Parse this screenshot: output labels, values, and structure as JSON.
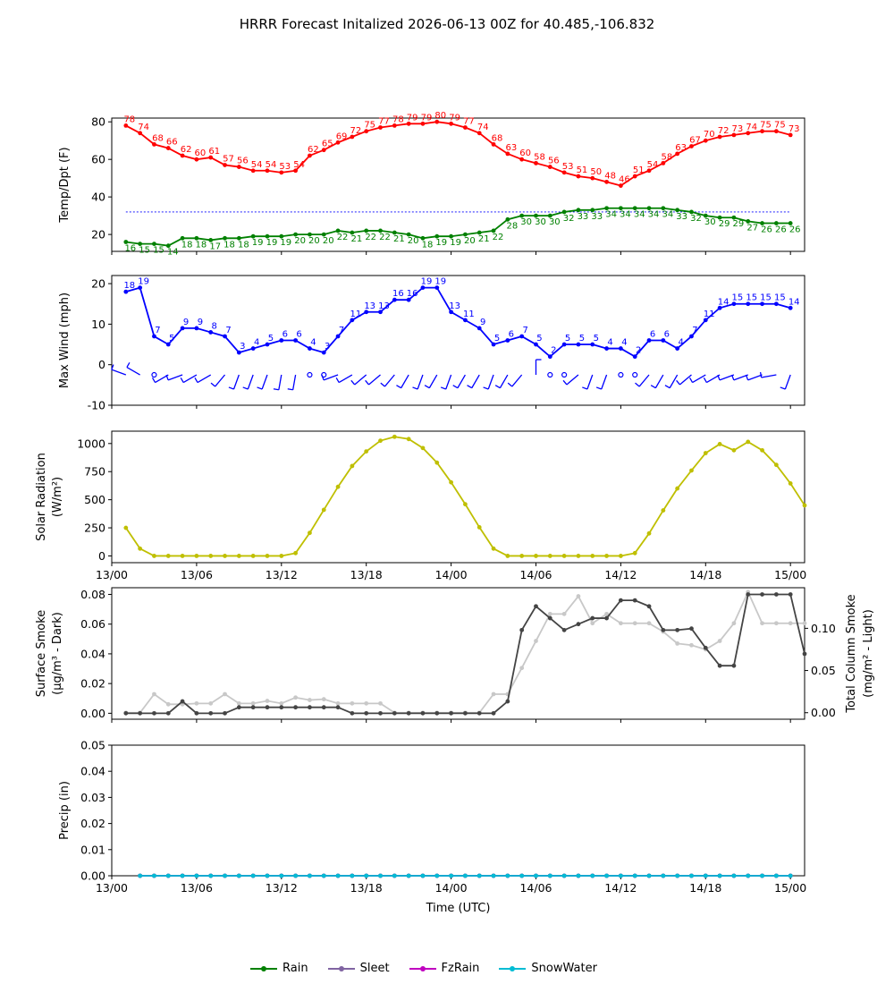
{
  "title": "HRRR Forecast Initalized 2026-06-13 00Z for 40.485,-106.832",
  "chart_data": [
    {
      "type": "line",
      "ylabel": "Temp/Dpt (F)",
      "ylim": [
        11,
        82
      ],
      "yticks": [
        20,
        40,
        60,
        80
      ],
      "xlim": [
        0,
        49
      ],
      "reference_line": {
        "value": 32,
        "color": "#0000ff",
        "style": "dotted"
      },
      "series": [
        {
          "name": "",
          "color": "#ff0000",
          "values": [
            78,
            74,
            68,
            66,
            62,
            60,
            61,
            57,
            56,
            54,
            54,
            53,
            54,
            62,
            65,
            69,
            72,
            75,
            77,
            78,
            79,
            79,
            80,
            79,
            77,
            74,
            68,
            63,
            60,
            58,
            56,
            53,
            51,
            50,
            48,
            46,
            51,
            54,
            58,
            63,
            67,
            70,
            72,
            73,
            74,
            75,
            75,
            73
          ]
        },
        {
          "name": "",
          "color": "#008000",
          "values": [
            16,
            15,
            15,
            14,
            18,
            18,
            17,
            18,
            18,
            19,
            19,
            19,
            20,
            20,
            20,
            22,
            21,
            22,
            22,
            21,
            20,
            18,
            19,
            19,
            20,
            21,
            22,
            28,
            30,
            30,
            30,
            32,
            33,
            33,
            34,
            34,
            34,
            34,
            34,
            33,
            32,
            30,
            29,
            29,
            27,
            26,
            26,
            26
          ]
        }
      ]
    },
    {
      "type": "line",
      "ylabel": "Max Wind (mph)",
      "ylim": [
        -10,
        22
      ],
      "yticks": [
        -10,
        0,
        10,
        20
      ],
      "xlim": [
        0,
        49
      ],
      "series": [
        {
          "name": "",
          "color": "#0000ff",
          "values": [
            18,
            19,
            7,
            5,
            9,
            9,
            8,
            7,
            3,
            4,
            5,
            6,
            6,
            4,
            3,
            7,
            11,
            13,
            13,
            16,
            16,
            19,
            19,
            13,
            11,
            9,
            5,
            6,
            7,
            5,
            2,
            5,
            5,
            5,
            4,
            4,
            2,
            6,
            6,
            4,
            7,
            11,
            14,
            15,
            15,
            15,
            15,
            14
          ]
        }
      ],
      "wind_barbs": {
        "y_level": -2.5,
        "calm_indices": [
          2,
          13,
          14,
          30,
          31,
          35,
          36
        ],
        "directions_deg": [
          290,
          300,
          0,
          240,
          250,
          240,
          240,
          220,
          200,
          200,
          200,
          190,
          190,
          0,
          0,
          250,
          240,
          230,
          230,
          220,
          210,
          200,
          210,
          200,
          210,
          210,
          200,
          210,
          220,
          0,
          0,
          220,
          230,
          200,
          200,
          0,
          0,
          220,
          210,
          210,
          230,
          240,
          240,
          250,
          250,
          250,
          260,
          200
        ]
      }
    },
    {
      "type": "line",
      "ylabel": "Solar Radiation",
      "ylabel2": "(W/m²)",
      "ylim": [
        -60,
        1110
      ],
      "yticks": [
        0,
        250,
        500,
        750,
        1000
      ],
      "xlim": [
        0,
        49
      ],
      "series": [
        {
          "name": "",
          "color": "#bfbf00",
          "values": [
            250,
            65,
            0,
            0,
            0,
            0,
            0,
            0,
            0,
            0,
            0,
            0,
            25,
            205,
            410,
            615,
            800,
            930,
            1025,
            1060,
            1040,
            960,
            830,
            655,
            460,
            255,
            65,
            0,
            0,
            0,
            0,
            0,
            0,
            0,
            0,
            0,
            25,
            200,
            405,
            600,
            760,
            915,
            995,
            940,
            1015,
            940,
            810,
            645,
            450
          ]
        }
      ]
    },
    {
      "type": "line",
      "ylabel": "Surface Smoke",
      "ylabel2": "(μg/m³ - Dark)",
      "ylabel_right": "Total Column Smoke",
      "ylabel_right2": "(mg/m² - Light)",
      "ylim": [
        -0.004,
        0.0845
      ],
      "yticks": [
        0.0,
        0.02,
        0.04,
        0.06,
        0.08
      ],
      "ylim_right": [
        -0.0077,
        0.1481
      ],
      "yticks_right": [
        0.0,
        0.05,
        0.1
      ],
      "xlim": [
        0,
        49
      ],
      "series": [
        {
          "name": "",
          "axis": "left",
          "color": "#444444",
          "values": [
            0,
            0,
            0,
            0,
            0.008,
            0,
            0,
            0,
            0.004,
            0.004,
            0.004,
            0.004,
            0.004,
            0.004,
            0.004,
            0.004,
            0,
            0,
            0,
            0,
            0,
            0,
            0,
            0,
            0,
            0,
            0,
            0.008,
            0.056,
            0.072,
            0.064,
            0.056,
            0.06,
            0.064,
            0.064,
            0.076,
            0.076,
            0.072,
            0.056,
            0.056,
            0.057,
            0.044,
            0.032,
            0.032,
            0.08,
            0.08,
            0.08,
            0.08,
            0.04
          ]
        },
        {
          "name": "",
          "axis": "right",
          "color": "#c8c8c8",
          "values": [
            0,
            0,
            0.022,
            0.01,
            0.01,
            0.011,
            0.011,
            0.022,
            0.011,
            0.011,
            0.014,
            0.011,
            0.018,
            0.015,
            0.016,
            0.011,
            0.011,
            0.011,
            0.011,
            0,
            0,
            0,
            0,
            0,
            0,
            0,
            0.022,
            0.022,
            0.053,
            0.085,
            0.117,
            0.117,
            0.138,
            0.106,
            0.117,
            0.106,
            0.106,
            0.106,
            0.096,
            0.082,
            0.08,
            0.075,
            0.085,
            0.106,
            0.143,
            0.106,
            0.106,
            0.106,
            0.106
          ]
        }
      ]
    },
    {
      "type": "line",
      "ylabel": "Precip (in)",
      "xlabel": "Time (UTC)",
      "ylim": [
        0,
        0.05
      ],
      "yticks": [
        0.0,
        0.01,
        0.02,
        0.03,
        0.04,
        0.05
      ],
      "xlim": [
        0,
        49
      ],
      "series": [
        {
          "name": "Rain",
          "color": "#008000",
          "values": [
            0,
            0,
            0,
            0,
            0,
            0,
            0,
            0,
            0,
            0,
            0,
            0,
            0,
            0,
            0,
            0,
            0,
            0,
            0,
            0,
            0,
            0,
            0,
            0,
            0,
            0,
            0,
            0,
            0,
            0,
            0,
            0,
            0,
            0,
            0,
            0,
            0,
            0,
            0,
            0,
            0,
            0,
            0,
            0,
            0,
            0,
            0
          ]
        },
        {
          "name": "Sleet",
          "color": "#8064a2",
          "values": [
            0,
            0,
            0,
            0,
            0,
            0,
            0,
            0,
            0,
            0,
            0,
            0,
            0,
            0,
            0,
            0,
            0,
            0,
            0,
            0,
            0,
            0,
            0,
            0,
            0,
            0,
            0,
            0,
            0,
            0,
            0,
            0,
            0,
            0,
            0,
            0,
            0,
            0,
            0,
            0,
            0,
            0,
            0,
            0,
            0,
            0,
            0
          ]
        },
        {
          "name": "FzRain",
          "color": "#c000c0",
          "values": [
            0,
            0,
            0,
            0,
            0,
            0,
            0,
            0,
            0,
            0,
            0,
            0,
            0,
            0,
            0,
            0,
            0,
            0,
            0,
            0,
            0,
            0,
            0,
            0,
            0,
            0,
            0,
            0,
            0,
            0,
            0,
            0,
            0,
            0,
            0,
            0,
            0,
            0,
            0,
            0,
            0,
            0,
            0,
            0,
            0,
            0,
            0
          ]
        },
        {
          "name": "SnowWater",
          "color": "#00bcd4",
          "values": [
            0,
            0,
            0,
            0,
            0,
            0,
            0,
            0,
            0,
            0,
            0,
            0,
            0,
            0,
            0,
            0,
            0,
            0,
            0,
            0,
            0,
            0,
            0,
            0,
            0,
            0,
            0,
            0,
            0,
            0,
            0,
            0,
            0,
            0,
            0,
            0,
            0,
            0,
            0,
            0,
            0,
            0,
            0,
            0,
            0,
            0,
            0
          ]
        }
      ]
    }
  ],
  "x_axis": {
    "tick_hours": [
      0,
      6,
      12,
      18,
      24,
      30,
      36,
      42,
      48
    ],
    "tick_labels": [
      "13/00",
      "13/06",
      "13/12",
      "13/18",
      "14/00",
      "14/06",
      "14/12",
      "14/18",
      "15/00"
    ]
  },
  "legend": [
    {
      "name": "Rain",
      "color": "#008000"
    },
    {
      "name": "Sleet",
      "color": "#8064a2"
    },
    {
      "name": "FzRain",
      "color": "#c000c0"
    },
    {
      "name": "SnowWater",
      "color": "#00bcd4"
    }
  ]
}
